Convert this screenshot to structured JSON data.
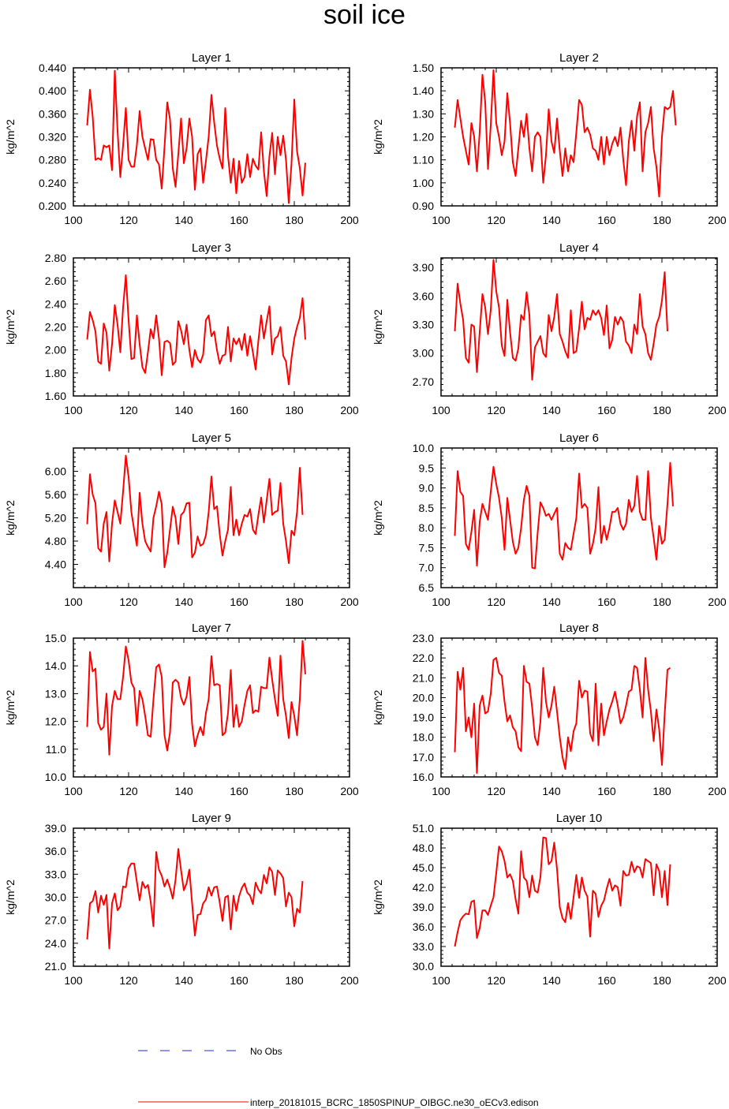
{
  "title": "soil ice",
  "colors": {
    "model": "#ff0000",
    "obs": "#1f2bd6",
    "axis": "#000000"
  },
  "legend": {
    "obs_label": "No Obs",
    "model_label": "interp_20181015_BCRC_1850SPINUP_OIBGC.ne30_oECv3.edison"
  },
  "chart_data": [
    {
      "type": "line",
      "title": "Layer 1",
      "ylabel": "kg/m^2",
      "xlim": [
        100,
        200
      ],
      "ylim": [
        0.2,
        0.44
      ],
      "xticks": [
        "100",
        "120",
        "140",
        "160",
        "180",
        "200"
      ],
      "yticks": [
        "0.200",
        "0.240",
        "0.280",
        "0.320",
        "0.360",
        "0.400",
        "0.440"
      ],
      "x_start": 105,
      "series": [
        {
          "values": [
            0.34,
            0.402,
            0.355,
            0.28,
            0.283,
            0.28,
            0.305,
            0.302,
            0.305,
            0.262,
            0.435,
            0.33,
            0.25,
            0.305,
            0.37,
            0.28,
            0.268,
            0.268,
            0.306,
            0.365,
            0.32,
            0.3,
            0.28,
            0.316,
            0.315,
            0.28,
            0.272,
            0.23,
            0.302,
            0.38,
            0.35,
            0.265,
            0.233,
            0.29,
            0.352,
            0.274,
            0.3,
            0.352,
            0.32,
            0.228,
            0.29,
            0.3,
            0.24,
            0.278,
            0.32,
            0.393,
            0.345,
            0.305,
            0.282,
            0.265,
            0.37,
            0.287,
            0.24,
            0.282,
            0.222,
            0.278,
            0.24,
            0.25,
            0.29,
            0.25,
            0.282,
            0.27,
            0.263,
            0.328,
            0.26,
            0.217,
            0.286,
            0.327,
            0.255,
            0.32,
            0.288,
            0.322,
            0.28,
            0.205,
            0.274,
            0.385,
            0.295,
            0.266,
            0.218,
            0.275
          ]
        }
      ]
    },
    {
      "type": "line",
      "title": "Layer 2",
      "ylabel": "kg/m^2",
      "xlim": [
        100,
        200
      ],
      "ylim": [
        0.9,
        1.5
      ],
      "xticks": [
        "100",
        "120",
        "140",
        "160",
        "180",
        "200"
      ],
      "yticks": [
        "0.90",
        "1.00",
        "1.10",
        "1.20",
        "1.30",
        "1.40",
        "1.50"
      ],
      "x_start": 105,
      "series": [
        {
          "values": [
            1.24,
            1.36,
            1.28,
            1.2,
            1.14,
            1.08,
            1.26,
            1.2,
            1.05,
            1.22,
            1.47,
            1.35,
            1.06,
            1.25,
            1.49,
            1.26,
            1.2,
            1.12,
            1.18,
            1.39,
            1.26,
            1.09,
            1.03,
            1.15,
            1.27,
            1.2,
            1.3,
            1.15,
            1.05,
            1.2,
            1.22,
            1.2,
            1.0,
            1.12,
            1.32,
            1.18,
            1.13,
            1.28,
            1.14,
            1.03,
            1.15,
            1.05,
            1.12,
            1.09,
            1.22,
            1.36,
            1.34,
            1.22,
            1.24,
            1.21,
            1.15,
            1.14,
            1.1,
            1.2,
            1.08,
            1.2,
            1.12,
            1.17,
            1.2,
            1.16,
            1.24,
            1.1,
            0.99,
            1.18,
            1.27,
            1.14,
            1.29,
            1.35,
            1.05,
            1.22,
            1.26,
            1.33,
            1.15,
            1.07,
            0.94,
            1.2,
            1.33,
            1.32,
            1.33,
            1.4,
            1.25
          ]
        }
      ]
    },
    {
      "type": "line",
      "title": "Layer 3",
      "ylabel": "kg/m^2",
      "xlim": [
        100,
        200
      ],
      "ylim": [
        1.6,
        2.8
      ],
      "xticks": [
        "100",
        "120",
        "140",
        "160",
        "180",
        "200"
      ],
      "yticks": [
        "1.60",
        "1.80",
        "2.00",
        "2.20",
        "2.40",
        "2.60",
        "2.80"
      ],
      "x_start": 105,
      "series": [
        {
          "values": [
            2.09,
            2.33,
            2.26,
            2.16,
            1.9,
            1.88,
            2.23,
            2.15,
            1.82,
            2.05,
            2.39,
            2.22,
            1.98,
            2.37,
            2.65,
            2.26,
            1.92,
            1.93,
            2.3,
            2.05,
            1.85,
            1.8,
            1.98,
            2.18,
            2.1,
            2.3,
            2.1,
            1.78,
            2.07,
            2.08,
            2.06,
            1.87,
            1.9,
            2.25,
            2.17,
            2.05,
            2.22,
            2.0,
            1.85,
            2.0,
            1.92,
            1.89,
            1.96,
            2.26,
            2.3,
            2.12,
            2.16,
            2.0,
            1.88,
            1.95,
            1.96,
            2.2,
            1.9,
            2.1,
            2.05,
            2.1,
            2.0,
            2.14,
            1.95,
            2.12,
            1.98,
            1.83,
            2.08,
            2.3,
            2.1,
            2.25,
            2.38,
            1.96,
            2.1,
            2.12,
            2.2,
            1.95,
            1.9,
            1.7,
            1.93,
            2.1,
            2.2,
            2.28,
            2.45,
            2.09
          ]
        }
      ]
    },
    {
      "type": "line",
      "title": "Layer 4",
      "ylabel": "kg/m^2",
      "xlim": [
        100,
        200
      ],
      "ylim": [
        2.55,
        4.0
      ],
      "xticks": [
        "100",
        "120",
        "140",
        "160",
        "180",
        "200"
      ],
      "yticks": [
        "2.70",
        "3.00",
        "3.30",
        "3.60",
        "3.90"
      ],
      "x_start": 105,
      "series": [
        {
          "values": [
            3.23,
            3.73,
            3.52,
            3.35,
            2.95,
            2.9,
            3.3,
            3.28,
            2.8,
            3.22,
            3.62,
            3.48,
            3.2,
            3.45,
            3.98,
            3.65,
            3.48,
            3.08,
            2.97,
            3.56,
            3.22,
            2.95,
            2.92,
            3.05,
            3.4,
            3.35,
            3.64,
            3.4,
            2.72,
            3.06,
            3.12,
            3.18,
            3.0,
            2.96,
            3.4,
            3.23,
            3.38,
            3.62,
            3.2,
            3.12,
            3.02,
            2.95,
            3.45,
            3.0,
            3.02,
            3.26,
            3.54,
            3.25,
            3.37,
            3.35,
            3.45,
            3.4,
            3.45,
            3.37,
            3.19,
            3.5,
            3.05,
            3.14,
            3.38,
            3.3,
            3.38,
            3.33,
            3.12,
            3.08,
            3.0,
            3.3,
            3.2,
            3.62,
            3.28,
            3.2,
            3.0,
            2.93,
            3.1,
            3.3,
            3.38,
            3.55,
            3.85,
            3.23
          ]
        }
      ]
    },
    {
      "type": "line",
      "title": "Layer 5",
      "ylabel": "kg/m^2",
      "xlim": [
        100,
        200
      ],
      "ylim": [
        4.0,
        6.4
      ],
      "xticks": [
        "100",
        "120",
        "140",
        "160",
        "180",
        "200"
      ],
      "yticks": [
        "4.40",
        "4.80",
        "5.20",
        "5.60",
        "6.00"
      ],
      "x_start": 105,
      "series": [
        {
          "values": [
            5.09,
            5.95,
            5.6,
            5.45,
            4.68,
            4.62,
            5.1,
            5.3,
            4.45,
            5.1,
            5.5,
            5.3,
            5.1,
            5.65,
            6.27,
            5.9,
            5.3,
            5.0,
            4.72,
            5.63,
            5.1,
            4.8,
            4.7,
            4.62,
            5.2,
            5.4,
            5.65,
            5.43,
            4.35,
            4.6,
            5.0,
            5.39,
            5.2,
            4.75,
            5.25,
            5.3,
            5.45,
            5.46,
            4.52,
            4.6,
            4.88,
            4.72,
            4.75,
            4.9,
            5.3,
            5.91,
            5.35,
            5.4,
            4.92,
            4.55,
            4.8,
            5.0,
            5.73,
            4.9,
            5.17,
            4.9,
            5.1,
            5.25,
            5.22,
            5.35,
            5.0,
            4.92,
            5.25,
            5.55,
            5.12,
            5.5,
            5.87,
            5.25,
            5.3,
            5.32,
            5.8,
            5.1,
            4.8,
            4.42,
            4.98,
            4.9,
            5.3,
            6.06,
            5.25
          ]
        }
      ]
    },
    {
      "type": "line",
      "title": "Layer 6",
      "ylabel": "kg/m^2",
      "xlim": [
        100,
        200
      ],
      "ylim": [
        6.5,
        10.0
      ],
      "xticks": [
        "100",
        "120",
        "140",
        "160",
        "180",
        "200"
      ],
      "yticks": [
        "6.5",
        "7.0",
        "7.5",
        "8.0",
        "8.5",
        "9.0",
        "9.5",
        "10.0"
      ],
      "x_start": 105,
      "series": [
        {
          "values": [
            7.8,
            9.42,
            8.9,
            8.8,
            7.6,
            7.45,
            7.9,
            8.45,
            7.05,
            8.15,
            8.6,
            8.4,
            8.2,
            8.9,
            9.53,
            9.1,
            8.75,
            8.25,
            7.45,
            8.75,
            8.2,
            7.65,
            7.35,
            7.5,
            8.0,
            8.7,
            9.05,
            8.8,
            7.0,
            6.98,
            7.88,
            8.64,
            8.5,
            8.3,
            8.35,
            8.2,
            8.35,
            8.5,
            7.35,
            7.2,
            7.62,
            7.5,
            7.45,
            7.85,
            8.25,
            9.36,
            8.5,
            8.6,
            8.5,
            7.35,
            7.6,
            8.0,
            9.02,
            7.62,
            8.05,
            7.7,
            8.0,
            8.4,
            8.4,
            8.5,
            8.1,
            7.95,
            8.1,
            8.7,
            8.4,
            8.55,
            9.3,
            8.4,
            8.2,
            8.2,
            9.42,
            8.25,
            7.75,
            7.2,
            8.05,
            7.6,
            7.7,
            8.6,
            9.63,
            8.54
          ]
        }
      ]
    },
    {
      "type": "line",
      "title": "Layer 7",
      "ylabel": "kg/m^2",
      "xlim": [
        100,
        200
      ],
      "ylim": [
        10.0,
        15.0
      ],
      "xticks": [
        "100",
        "120",
        "140",
        "160",
        "180",
        "200"
      ],
      "yticks": [
        "10.0",
        "11.0",
        "12.0",
        "13.0",
        "14.0",
        "15.0"
      ],
      "x_start": 105,
      "series": [
        {
          "values": [
            11.8,
            14.5,
            13.8,
            13.9,
            11.95,
            11.7,
            11.8,
            13.0,
            10.8,
            12.55,
            13.1,
            12.8,
            12.8,
            13.6,
            14.7,
            14.2,
            13.4,
            13.2,
            11.85,
            13.1,
            12.8,
            12.2,
            11.5,
            11.45,
            12.8,
            13.95,
            14.05,
            13.6,
            11.5,
            10.95,
            11.6,
            13.4,
            13.5,
            13.4,
            12.85,
            12.6,
            12.9,
            13.6,
            11.9,
            11.1,
            11.5,
            11.8,
            11.5,
            12.3,
            12.8,
            14.35,
            13.3,
            13.35,
            13.3,
            11.5,
            11.6,
            12.3,
            13.85,
            11.8,
            12.6,
            11.8,
            12.0,
            12.6,
            13.1,
            13.3,
            12.3,
            12.4,
            12.35,
            13.25,
            13.2,
            13.2,
            14.3,
            13.5,
            12.8,
            12.2,
            14.37,
            12.8,
            12.2,
            11.4,
            12.7,
            12.2,
            11.5,
            12.8,
            14.9,
            13.7
          ]
        }
      ]
    },
    {
      "type": "line",
      "title": "Layer 8",
      "ylabel": "kg/m^2",
      "xlim": [
        100,
        200
      ],
      "ylim": [
        16.0,
        23.0
      ],
      "xticks": [
        "100",
        "120",
        "140",
        "160",
        "180",
        "200"
      ],
      "yticks": [
        "16.0",
        "17.0",
        "18.0",
        "19.0",
        "20.0",
        "21.0",
        "22.0",
        "23.0"
      ],
      "x_start": 105,
      "series": [
        {
          "values": [
            17.25,
            21.3,
            20.4,
            21.5,
            18.3,
            19.0,
            18.0,
            19.7,
            16.2,
            19.6,
            20.1,
            19.2,
            19.3,
            20.2,
            21.9,
            22.0,
            21.25,
            21.1,
            19.8,
            18.8,
            19.1,
            18.5,
            18.3,
            17.5,
            17.3,
            21.6,
            20.8,
            20.7,
            19.5,
            18.0,
            17.6,
            18.8,
            21.5,
            19.8,
            19.0,
            19.6,
            20.55,
            19.3,
            18.0,
            17.0,
            16.4,
            18.0,
            17.3,
            18.3,
            18.7,
            20.85,
            20.0,
            20.35,
            20.3,
            18.2,
            17.8,
            20.7,
            17.6,
            19.7,
            18.1,
            18.8,
            19.4,
            19.8,
            20.3,
            19.6,
            18.7,
            19.0,
            19.6,
            20.3,
            20.4,
            21.6,
            21.5,
            20.4,
            19.0,
            22.0,
            20.4,
            19.3,
            17.8,
            19.4,
            18.4,
            16.6,
            19.2,
            21.4,
            21.5
          ]
        }
      ]
    },
    {
      "type": "line",
      "title": "Layer 9",
      "ylabel": "kg/m^2",
      "xlim": [
        100,
        200
      ],
      "ylim": [
        21.0,
        39.0
      ],
      "xticks": [
        "100",
        "120",
        "140",
        "160",
        "180",
        "200"
      ],
      "yticks": [
        "21.0",
        "24.0",
        "27.0",
        "30.0",
        "33.0",
        "36.0",
        "39.0"
      ],
      "x_start": 105,
      "series": [
        {
          "values": [
            24.5,
            29.2,
            29.5,
            30.8,
            28.0,
            30.2,
            29.0,
            30.3,
            23.3,
            29.2,
            30.5,
            28.3,
            28.8,
            31.4,
            31.3,
            33.8,
            34.4,
            34.4,
            32.0,
            29.6,
            32.0,
            31.2,
            31.6,
            29.4,
            26.2,
            35.9,
            33.6,
            32.8,
            31.4,
            32.3,
            31.2,
            29.8,
            32.3,
            36.3,
            33.5,
            30.9,
            31.8,
            33.6,
            29.2,
            25.0,
            27.7,
            27.8,
            29.2,
            29.7,
            31.3,
            30.2,
            31.3,
            31.4,
            29.3,
            26.9,
            30.0,
            30.2,
            25.8,
            30.2,
            28.2,
            30.1,
            31.2,
            31.8,
            30.6,
            30.2,
            29.1,
            31.9,
            31.0,
            30.5,
            32.9,
            31.8,
            33.9,
            33.3,
            30.3,
            33.5,
            33.1,
            32.5,
            28.8,
            30.6,
            30.0,
            26.2,
            28.5,
            28.0,
            32.1
          ]
        }
      ]
    },
    {
      "type": "line",
      "title": "Layer 10",
      "ylabel": "kg/m^2",
      "xlim": [
        100,
        200
      ],
      "ylim": [
        30.0,
        51.0
      ],
      "xticks": [
        "100",
        "120",
        "140",
        "160",
        "180",
        "200"
      ],
      "yticks": [
        "30.0",
        "33.0",
        "36.0",
        "39.0",
        "42.0",
        "45.0",
        "48.0",
        "51.0"
      ],
      "x_start": 105,
      "series": [
        {
          "values": [
            33.0,
            35.2,
            37.0,
            37.6,
            38.0,
            37.9,
            39.8,
            40.0,
            34.3,
            35.8,
            38.5,
            38.5,
            37.8,
            39.2,
            40.5,
            44.2,
            48.2,
            47.5,
            46.0,
            43.5,
            44.0,
            43.0,
            40.2,
            38.0,
            47.5,
            43.5,
            43.0,
            40.5,
            43.8,
            41.5,
            41.2,
            43.6,
            49.6,
            49.5,
            45.5,
            46.0,
            48.8,
            44.8,
            39.0,
            37.3,
            36.7,
            39.6,
            37.2,
            40.5,
            43.9,
            40.4,
            43.5,
            41.5,
            40.6,
            34.5,
            41.5,
            41.0,
            37.5,
            39.2,
            40.0,
            41.8,
            43.3,
            41.5,
            42.3,
            42.0,
            39.2,
            44.5,
            43.8,
            43.9,
            45.9,
            44.3,
            45.2,
            45.0,
            43.5,
            46.3,
            46.0,
            45.7,
            40.8,
            45.5,
            44.5,
            40.5,
            44.5,
            39.3,
            45.5
          ]
        }
      ]
    }
  ]
}
